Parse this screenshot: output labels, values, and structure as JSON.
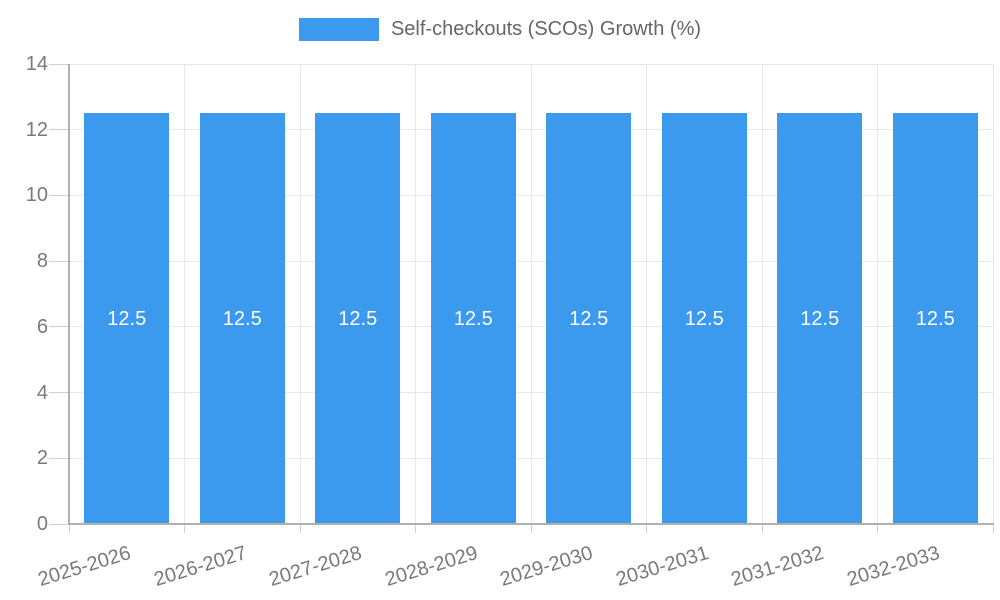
{
  "chart_data": {
    "type": "bar",
    "title": "",
    "categories": [
      "2025-2026",
      "2026-2027",
      "2027-2028",
      "2028-2029",
      "2029-2030",
      "2030-2031",
      "2031-2032",
      "2032-2033"
    ],
    "series": [
      {
        "name": "Self-checkouts (SCOs) Growth (%)",
        "values": [
          12.5,
          12.5,
          12.5,
          12.5,
          12.5,
          12.5,
          12.5,
          12.5
        ]
      }
    ],
    "bar_value_labels": [
      "12.5",
      "12.5",
      "12.5",
      "12.5",
      "12.5",
      "12.5",
      "12.5",
      "12.5"
    ],
    "xlabel": "",
    "ylabel": "",
    "ylim": [
      0,
      14
    ],
    "yticks": [
      0,
      2,
      4,
      6,
      8,
      10,
      12,
      14
    ],
    "grid": true,
    "legend_position": "top",
    "colors": {
      "bar": "#3b99ee",
      "bar_label": "#ffffff",
      "gridline": "#e8e8e8",
      "tick_mark": "#cfcfcf",
      "axis_line": "#b0b0b0",
      "tick_label": "#7a7a7a",
      "legend_text": "#666666"
    }
  }
}
